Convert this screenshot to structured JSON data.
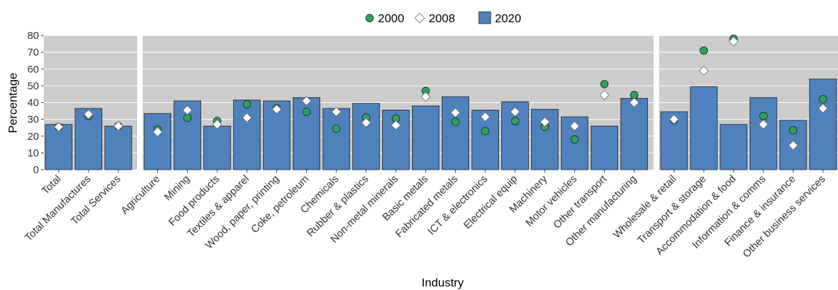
{
  "chart_data": {
    "type": "bar",
    "xlabel": "Industry",
    "ylabel": "Percentage",
    "ylim": [
      0,
      80
    ],
    "yticks": [
      0,
      10,
      20,
      30,
      40,
      50,
      60,
      70,
      80
    ],
    "grid": true,
    "legend_position": "top",
    "colors": {
      "bar_2020": "#4f81bd",
      "bar_border": "#1f1f1f",
      "marker_2000": "#2ca25f",
      "marker_2008": "#ffffff",
      "panel_background": "#cccccc",
      "gridline": "#ffffff"
    },
    "legend": [
      {
        "label": "2000",
        "marker": "circle"
      },
      {
        "label": "2008",
        "marker": "diamond"
      },
      {
        "label": "2020",
        "marker": "square"
      }
    ],
    "panels": [
      {
        "categories": [
          "Total",
          "Total Manufactures",
          "Total Services"
        ]
      },
      {
        "categories": [
          "Agriculture",
          "Mining",
          "Food products",
          "Textiles & apparel",
          "Wood, paper, printing",
          "Coke, petroleum",
          "Chemicals",
          "Rubber & plastics",
          "Non-metal minerals",
          "Basic metals",
          "Fabricated metals",
          "ICT & electronics",
          "Electrical equip",
          "Machinery",
          "Motor vehicles",
          "Other transport",
          "Other manufacturing"
        ]
      },
      {
        "categories": [
          "Wholesale & retail",
          "Transport & storage",
          "Accommodation & food",
          "Information & comms",
          "Finance & insurance",
          "Other business services"
        ]
      }
    ],
    "series": [
      {
        "name": "2020",
        "kind": "bar",
        "values": [
          27,
          36.5,
          26,
          33.5,
          41,
          26,
          41.5,
          41,
          43,
          36.5,
          39.5,
          35.5,
          38,
          43.5,
          35.5,
          40.5,
          36,
          31.5,
          26,
          42.5,
          34.5,
          49.5,
          27,
          43,
          29.5,
          54
        ]
      },
      {
        "name": "2000",
        "kind": "circle",
        "values": [
          25.5,
          32,
          26,
          24,
          31,
          29,
          39,
          36.5,
          34.5,
          24.5,
          31,
          30.5,
          47,
          28.5,
          23,
          29,
          25.5,
          18,
          51,
          44.5,
          29.5,
          71,
          78,
          32,
          23.5,
          42
        ]
      },
      {
        "name": "2008",
        "kind": "diamond",
        "values": [
          25.5,
          33,
          26,
          22.5,
          35.5,
          27,
          31,
          36,
          41,
          34.5,
          28,
          26.5,
          43.5,
          34,
          31.5,
          34.5,
          28.5,
          26,
          44.5,
          40,
          30,
          59,
          76.5,
          27,
          14.5,
          36.5
        ]
      }
    ]
  }
}
